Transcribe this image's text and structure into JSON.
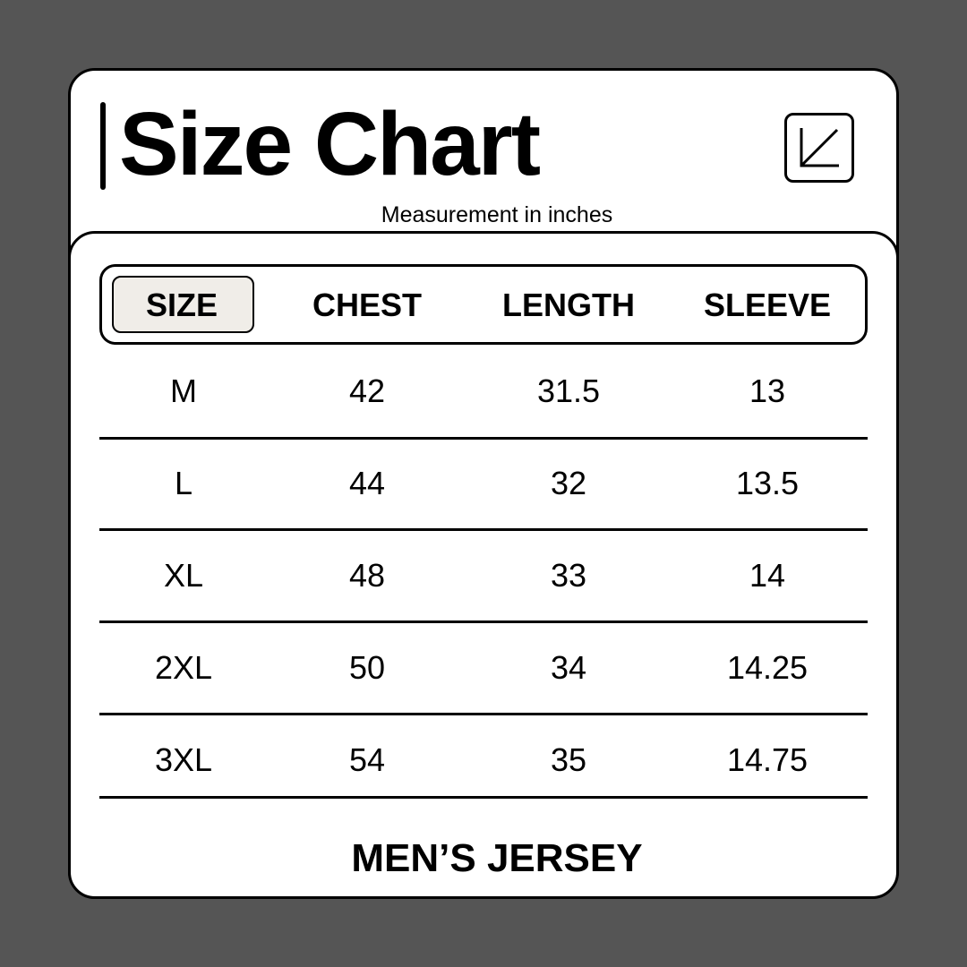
{
  "title": "Size Chart",
  "subtitle": "Measurement in inches",
  "icon": "arrow-down-left-icon",
  "table": {
    "columns": [
      "SIZE",
      "CHEST",
      "LENGTH",
      "SLEEVE"
    ],
    "rows": [
      [
        "M",
        "42",
        "31.5",
        "13"
      ],
      [
        "L",
        "44",
        "32",
        "13.5"
      ],
      [
        "XL",
        "48",
        "33",
        "14"
      ],
      [
        "2XL",
        "50",
        "34",
        "14.25"
      ],
      [
        "3XL",
        "54",
        "35",
        "14.75"
      ]
    ]
  },
  "footer": "MEN’S JERSEY",
  "colors": {
    "background": "#555555",
    "card": "#ffffff",
    "size_highlight": "#f0ede8"
  }
}
